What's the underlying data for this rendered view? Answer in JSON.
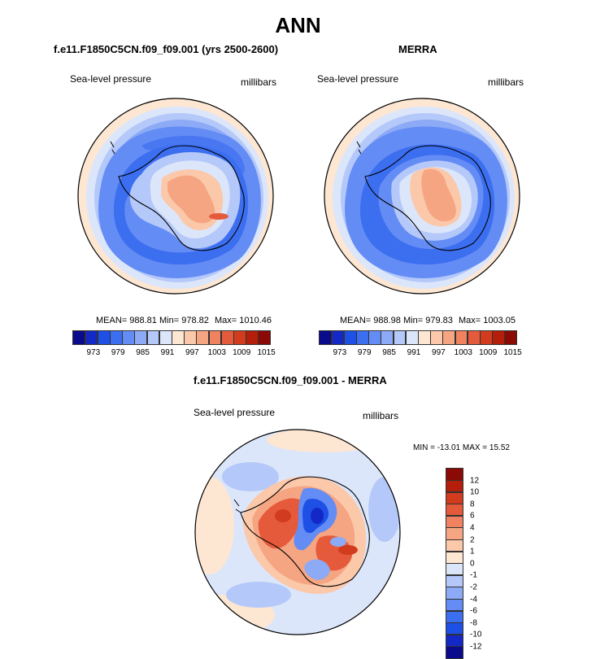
{
  "title": "ANN",
  "panel_left": {
    "title": "f.e11.F1850C5CN.f09_f09.001 (yrs 2500-2600)",
    "variable": "Sea-level pressure",
    "units": "millibars",
    "mean_label": "MEAN= 988.81",
    "min_label": "Min= 978.82",
    "max_label": "Max= 1010.46"
  },
  "panel_right": {
    "title": "MERRA",
    "variable": "Sea-level pressure",
    "units": "millibars",
    "mean_label": "MEAN= 988.98",
    "min_label": "Min= 979.83",
    "max_label": "Max= 1003.05"
  },
  "panel_diff": {
    "title": "f.e11.F1850C5CN.f09_f09.001 - MERRA",
    "variable": "Sea-level pressure",
    "units": "millibars",
    "minmax_label": "MIN = -13.01  MAX =  15.52"
  },
  "colorbar_abs": {
    "colors": [
      "#0a0a8c",
      "#1428c8",
      "#1e50e6",
      "#3c6ef0",
      "#648cf5",
      "#8caaf5",
      "#b4c8fa",
      "#dce6fa",
      "#fde6d2",
      "#fbc8aa",
      "#f5a582",
      "#f0825f",
      "#e65a3c",
      "#d23c1e",
      "#b41e0a",
      "#8c0a05"
    ],
    "tick_labels": [
      "973",
      "979",
      "985",
      "991",
      "997",
      "1003",
      "1009",
      "1015"
    ]
  },
  "colorbar_diff": {
    "colors": [
      "#8c0a05",
      "#b41e0a",
      "#d23c1e",
      "#e65a3c",
      "#f0825f",
      "#f5a582",
      "#fbc8aa",
      "#fde6d2",
      "#dce6fa",
      "#b4c8fa",
      "#8caaf5",
      "#648cf5",
      "#3c6ef0",
      "#1e50e6",
      "#1428c8",
      "#0a0a8c"
    ],
    "tick_labels": [
      "12",
      "10",
      "8",
      "6",
      "4",
      "2",
      "1",
      "0",
      "-1",
      "-2",
      "-4",
      "-6",
      "-8",
      "-10",
      "-12"
    ]
  },
  "colors": {
    "ocean_deep_low": "#3c6ef0",
    "ocean_low": "#648cf5",
    "light_low": "#b4c8fa",
    "neutral": "#dce6fa",
    "high_light": "#fde6d2",
    "high": "#f5a582",
    "high_strong": "#e65a3c"
  }
}
